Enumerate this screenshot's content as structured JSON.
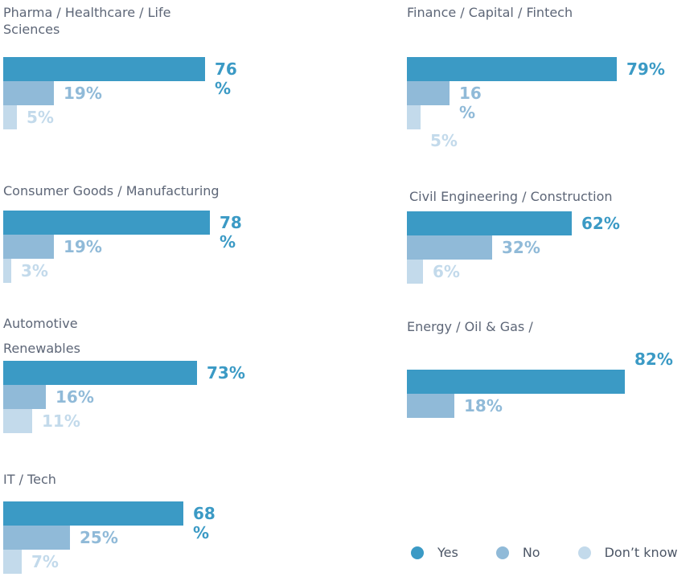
{
  "series_colors": {
    "yes": "#3B9AC5",
    "no": "#90BAD8",
    "dont_know": "#C3DAEB"
  },
  "text_colors": {
    "title": "#5D6677",
    "legend": "#4C5666"
  },
  "legend": {
    "items": [
      {
        "label": "Yes",
        "color": "#3B9AC5"
      },
      {
        "label": "No",
        "color": "#90BAD8"
      },
      {
        "label": "Don’t know",
        "color": "#C3DAEB"
      }
    ]
  },
  "chart_data": [
    {
      "type": "bar",
      "title": "Pharma / Healthcare / Life Sciences",
      "title_display": "Pharma / Healthcare / Life\nSciences",
      "categories": [
        "Yes",
        "No",
        "Don’t know"
      ],
      "values": [
        76,
        19,
        5
      ],
      "value_labels": [
        "76\n%",
        "19%",
        "5%"
      ],
      "xlim": [
        0,
        100
      ]
    },
    {
      "type": "bar",
      "title": "Finance / Capital / Fintech",
      "title_display": "Finance / Capital / Fintech",
      "categories": [
        "Yes",
        "No",
        "Don’t know"
      ],
      "values": [
        79,
        16,
        5
      ],
      "value_labels": [
        "79%",
        "16\n%",
        "5%"
      ],
      "xlim": [
        0,
        100
      ]
    },
    {
      "type": "bar",
      "title": "Consumer Goods / Manufacturing",
      "title_display": "Consumer Goods / Manufacturing",
      "categories": [
        "Yes",
        "No",
        "Don’t know"
      ],
      "values": [
        78,
        19,
        3
      ],
      "value_labels": [
        "78\n%",
        "19%",
        "3%"
      ],
      "xlim": [
        0,
        100
      ]
    },
    {
      "type": "bar",
      "title": "Civil Engineering / Construction",
      "title_display": "Civil Engineering / Construction",
      "categories": [
        "Yes",
        "No",
        "Don’t know"
      ],
      "values": [
        62,
        32,
        6
      ],
      "value_labels": [
        "62%",
        "32%",
        "6%"
      ],
      "xlim": [
        0,
        100
      ]
    },
    {
      "type": "bar",
      "title": "Automotive Renewables",
      "title_display": "Automotive\nRenewables",
      "categories": [
        "Yes",
        "No",
        "Don’t know"
      ],
      "values": [
        73,
        16,
        11
      ],
      "value_labels": [
        "73%",
        "16%",
        "11%"
      ],
      "xlim": [
        0,
        100
      ]
    },
    {
      "type": "bar",
      "title": "Energy / Oil & Gas /",
      "title_display": "Energy / Oil & Gas /",
      "categories": [
        "Yes",
        "No"
      ],
      "values": [
        82,
        18
      ],
      "value_labels": [
        "82%",
        "18%"
      ],
      "xlim": [
        0,
        100
      ]
    },
    {
      "type": "bar",
      "title": "IT / Tech",
      "title_display": "IT / Tech",
      "categories": [
        "Yes",
        "No",
        "Don’t know"
      ],
      "values": [
        68,
        25,
        7
      ],
      "value_labels": [
        "68\n%",
        "25%",
        "7%"
      ],
      "xlim": [
        0,
        100
      ]
    }
  ]
}
